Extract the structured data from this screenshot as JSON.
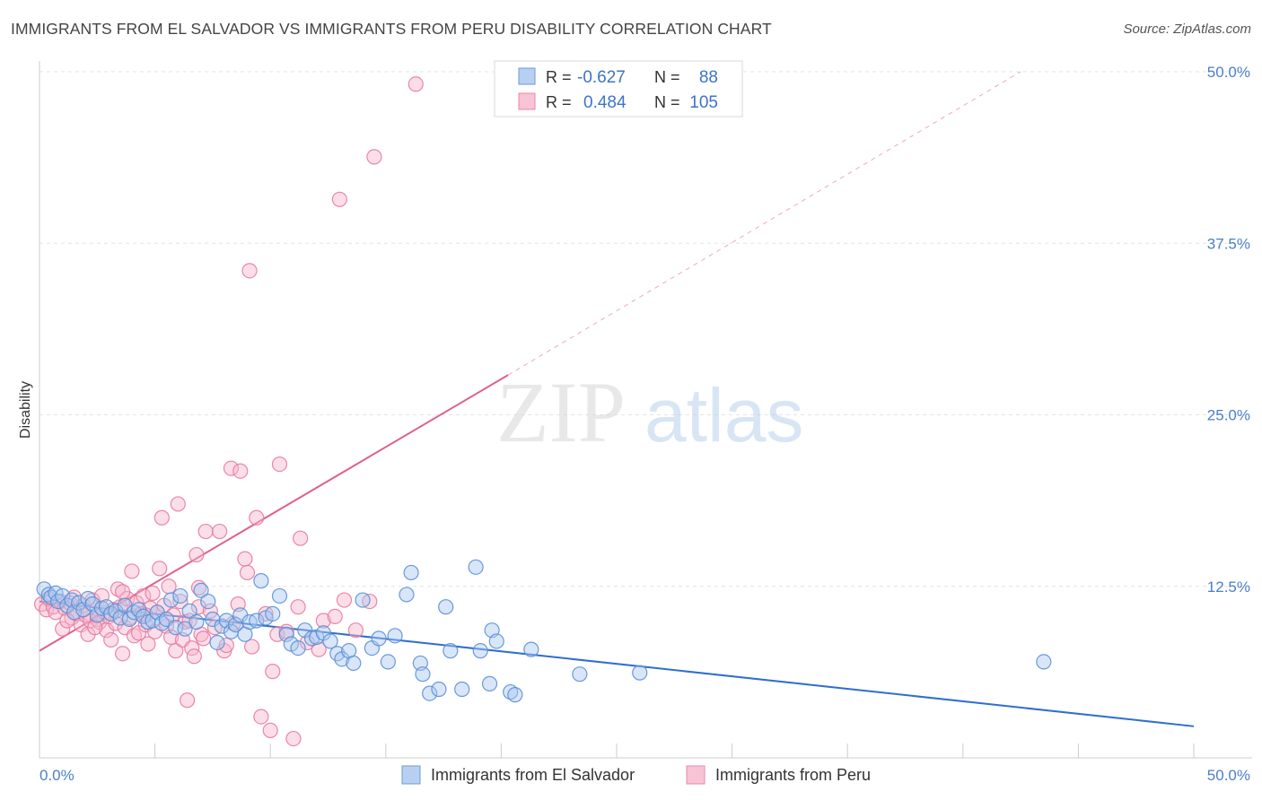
{
  "header": {
    "title": "IMMIGRANTS FROM EL SALVADOR VS IMMIGRANTS FROM PERU DISABILITY CORRELATION CHART",
    "source": "Source: ZipAtlas.com"
  },
  "watermark": {
    "zip": "ZIP",
    "atlas": "atlas"
  },
  "colors": {
    "blue_fill": "#a9c8f0",
    "blue_stroke": "#5b8fd6",
    "blue_line": "#2f6fcf",
    "pink_fill": "#f6b6cb",
    "pink_stroke": "#e87aa0",
    "pink_line": "#e0608e",
    "tick_text": "#4a7fc9",
    "grid": "#e3e3e3"
  },
  "chart_data": {
    "type": "scatter",
    "title": "IMMIGRANTS FROM EL SALVADOR VS IMMIGRANTS FROM PERU DISABILITY CORRELATION CHART",
    "xlabel": "",
    "ylabel": "Disability",
    "xlim": [
      0,
      50
    ],
    "ylim": [
      0,
      52
    ],
    "x_tick_labels": [
      "0.0%",
      "50.0%"
    ],
    "y_ticks": [
      12.5,
      25.0,
      37.5,
      50.0
    ],
    "y_tick_labels": [
      "12.5%",
      "25.0%",
      "37.5%",
      "50.0%"
    ],
    "grid": true,
    "legend_position": "top-center",
    "stats": [
      {
        "r_label": "R =",
        "r_value": "-0.627",
        "n_label": "N =",
        "n_value": "88"
      },
      {
        "r_label": "R =",
        "r_value": "0.484",
        "n_label": "N =",
        "n_value": "105"
      }
    ],
    "series": [
      {
        "name": "Immigrants from El Salvador",
        "color": "#5b8fd6",
        "trend": {
          "x": [
            0,
            50
          ],
          "y": [
            11.4,
            2.3
          ]
        },
        "points": [
          [
            0.2,
            12.3
          ],
          [
            0.4,
            11.9
          ],
          [
            0.5,
            11.7
          ],
          [
            0.7,
            12.0
          ],
          [
            0.8,
            11.4
          ],
          [
            1.0,
            11.8
          ],
          [
            1.2,
            11.1
          ],
          [
            1.4,
            11.5
          ],
          [
            1.5,
            10.6
          ],
          [
            1.7,
            11.3
          ],
          [
            1.9,
            10.8
          ],
          [
            2.1,
            11.6
          ],
          [
            2.3,
            11.2
          ],
          [
            2.5,
            10.4
          ],
          [
            2.7,
            10.9
          ],
          [
            2.9,
            11.0
          ],
          [
            3.1,
            10.5
          ],
          [
            3.3,
            10.7
          ],
          [
            3.5,
            10.2
          ],
          [
            3.7,
            11.1
          ],
          [
            3.9,
            10.1
          ],
          [
            4.1,
            10.6
          ],
          [
            4.3,
            10.8
          ],
          [
            4.5,
            10.3
          ],
          [
            4.7,
            9.9
          ],
          [
            4.9,
            10.0
          ],
          [
            5.1,
            10.6
          ],
          [
            5.3,
            9.8
          ],
          [
            5.5,
            10.1
          ],
          [
            5.7,
            11.5
          ],
          [
            5.9,
            9.5
          ],
          [
            6.1,
            11.8
          ],
          [
            6.3,
            9.4
          ],
          [
            6.5,
            10.7
          ],
          [
            6.8,
            9.9
          ],
          [
            7.0,
            12.2
          ],
          [
            7.3,
            11.4
          ],
          [
            7.5,
            10.1
          ],
          [
            7.7,
            8.4
          ],
          [
            7.9,
            9.6
          ],
          [
            8.1,
            10.0
          ],
          [
            8.3,
            9.2
          ],
          [
            8.5,
            9.7
          ],
          [
            8.7,
            10.4
          ],
          [
            8.9,
            9.0
          ],
          [
            9.1,
            9.9
          ],
          [
            9.4,
            10.0
          ],
          [
            9.6,
            12.9
          ],
          [
            9.8,
            10.2
          ],
          [
            10.1,
            10.5
          ],
          [
            10.4,
            11.8
          ],
          [
            10.7,
            9.0
          ],
          [
            10.9,
            8.3
          ],
          [
            11.2,
            8.0
          ],
          [
            11.5,
            9.3
          ],
          [
            11.8,
            8.7
          ],
          [
            12.0,
            8.8
          ],
          [
            12.3,
            9.1
          ],
          [
            12.6,
            8.5
          ],
          [
            12.9,
            7.6
          ],
          [
            13.1,
            7.2
          ],
          [
            13.4,
            7.8
          ],
          [
            13.6,
            6.9
          ],
          [
            14.0,
            11.5
          ],
          [
            14.4,
            8.0
          ],
          [
            14.7,
            8.7
          ],
          [
            15.1,
            7.0
          ],
          [
            15.4,
            8.9
          ],
          [
            15.9,
            11.9
          ],
          [
            16.1,
            13.5
          ],
          [
            16.5,
            6.9
          ],
          [
            16.6,
            6.1
          ],
          [
            16.9,
            4.7
          ],
          [
            17.3,
            5.0
          ],
          [
            17.6,
            11.0
          ],
          [
            17.8,
            7.8
          ],
          [
            18.3,
            5.0
          ],
          [
            18.9,
            13.9
          ],
          [
            19.1,
            7.8
          ],
          [
            19.5,
            5.4
          ],
          [
            19.6,
            9.3
          ],
          [
            19.8,
            8.5
          ],
          [
            20.4,
            4.8
          ],
          [
            20.6,
            4.6
          ],
          [
            21.3,
            7.9
          ],
          [
            23.4,
            6.1
          ],
          [
            26.0,
            6.2
          ],
          [
            43.5,
            7.0
          ]
        ]
      },
      {
        "name": "Immigrants from Peru",
        "color": "#e87aa0",
        "trend": {
          "x": [
            0,
            20.3
          ],
          "y": [
            7.8,
            27.9
          ]
        },
        "trend_extended": {
          "x": [
            20.3,
            42.5
          ],
          "y": [
            27.9,
            50.0
          ]
        },
        "points": [
          [
            0.1,
            11.2
          ],
          [
            0.3,
            10.8
          ],
          [
            0.4,
            11.6
          ],
          [
            0.6,
            11.0
          ],
          [
            0.7,
            10.6
          ],
          [
            0.9,
            11.4
          ],
          [
            1.0,
            9.4
          ],
          [
            1.1,
            10.9
          ],
          [
            1.3,
            11.3
          ],
          [
            1.4,
            10.2
          ],
          [
            1.5,
            11.7
          ],
          [
            1.6,
            10.5
          ],
          [
            1.8,
            9.7
          ],
          [
            1.9,
            11.1
          ],
          [
            2.0,
            10.4
          ],
          [
            2.1,
            9.0
          ],
          [
            2.2,
            10.0
          ],
          [
            2.3,
            11.5
          ],
          [
            2.5,
            10.1
          ],
          [
            2.6,
            9.9
          ],
          [
            2.7,
            11.8
          ],
          [
            2.8,
            10.6
          ],
          [
            2.9,
            9.3
          ],
          [
            3.0,
            10.3
          ],
          [
            3.1,
            8.6
          ],
          [
            3.2,
            10.8
          ],
          [
            3.3,
            9.8
          ],
          [
            3.4,
            12.3
          ],
          [
            3.5,
            11.0
          ],
          [
            3.6,
            7.6
          ],
          [
            3.7,
            9.5
          ],
          [
            3.8,
            11.6
          ],
          [
            3.9,
            10.2
          ],
          [
            4.0,
            13.6
          ],
          [
            4.1,
            8.9
          ],
          [
            4.2,
            11.3
          ],
          [
            4.3,
            9.1
          ],
          [
            4.4,
            10.5
          ],
          [
            4.5,
            11.8
          ],
          [
            4.6,
            9.7
          ],
          [
            4.7,
            8.3
          ],
          [
            4.8,
            10.9
          ],
          [
            4.9,
            12.0
          ],
          [
            5.0,
            9.2
          ],
          [
            5.1,
            10.6
          ],
          [
            5.2,
            13.8
          ],
          [
            5.3,
            17.5
          ],
          [
            5.4,
            11.1
          ],
          [
            5.5,
            9.6
          ],
          [
            5.6,
            12.5
          ],
          [
            5.7,
            8.8
          ],
          [
            5.8,
            10.4
          ],
          [
            5.9,
            7.8
          ],
          [
            6.0,
            18.5
          ],
          [
            6.1,
            11.4
          ],
          [
            6.2,
            8.6
          ],
          [
            6.3,
            9.9
          ],
          [
            6.4,
            4.2
          ],
          [
            6.5,
            10.0
          ],
          [
            6.6,
            8.0
          ],
          [
            6.7,
            7.4
          ],
          [
            6.8,
            14.8
          ],
          [
            6.9,
            11.0
          ],
          [
            7.0,
            9.0
          ],
          [
            7.1,
            8.7
          ],
          [
            7.2,
            16.5
          ],
          [
            7.4,
            10.7
          ],
          [
            7.6,
            9.5
          ],
          [
            7.8,
            16.5
          ],
          [
            8.0,
            7.8
          ],
          [
            8.1,
            8.2
          ],
          [
            8.3,
            21.1
          ],
          [
            8.4,
            9.8
          ],
          [
            8.6,
            11.2
          ],
          [
            8.7,
            20.9
          ],
          [
            8.9,
            14.5
          ],
          [
            9.0,
            13.5
          ],
          [
            9.1,
            35.5
          ],
          [
            9.2,
            8.1
          ],
          [
            9.4,
            17.5
          ],
          [
            9.6,
            3.0
          ],
          [
            9.8,
            10.5
          ],
          [
            10.0,
            2.0
          ],
          [
            10.1,
            6.3
          ],
          [
            10.3,
            9.0
          ],
          [
            10.4,
            21.4
          ],
          [
            10.7,
            9.2
          ],
          [
            11.0,
            1.4
          ],
          [
            11.2,
            11.0
          ],
          [
            11.3,
            16.0
          ],
          [
            11.6,
            8.4
          ],
          [
            12.1,
            7.9
          ],
          [
            12.3,
            10.0
          ],
          [
            12.8,
            10.3
          ],
          [
            13.2,
            11.5
          ],
          [
            13.7,
            9.3
          ],
          [
            14.3,
            11.4
          ],
          [
            13.0,
            40.7
          ],
          [
            14.5,
            43.8
          ],
          [
            16.3,
            49.1
          ],
          [
            4.6,
            10.4
          ],
          [
            2.4,
            9.5
          ],
          [
            1.2,
            10.0
          ],
          [
            3.6,
            12.1
          ],
          [
            6.9,
            12.4
          ]
        ]
      }
    ]
  }
}
